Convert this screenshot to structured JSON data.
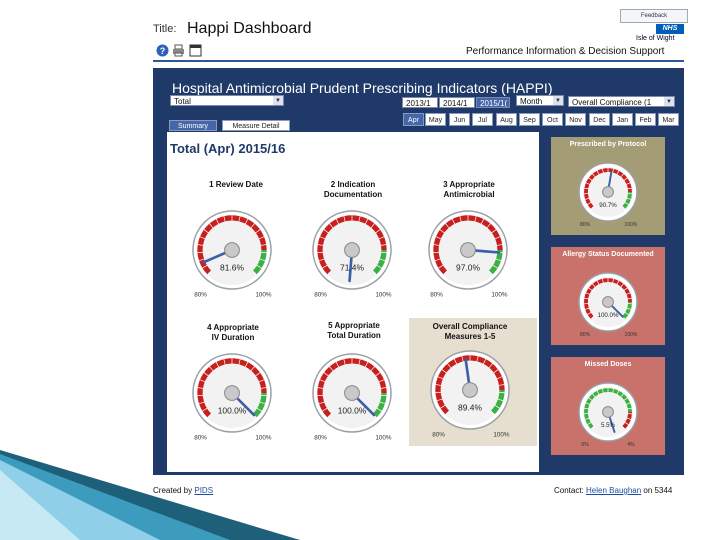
{
  "header": {
    "title_label": "Title:",
    "title_value": "Happi Dashboard",
    "feedback_label": "Feedback",
    "nhs_logo": "NHS",
    "trust_name": "Isle of Wight",
    "org_name": "Performance Information & Decision Support",
    "icons": [
      "help-icon",
      "print-icon",
      "window-icon"
    ]
  },
  "app": {
    "title": "Hospital Antimicrobial Prudent Prescribing Indicators  (HAPPI)",
    "ward_select": "Total",
    "years": [
      "2013/1",
      "2014/1",
      "2015/1("
    ],
    "period_select": "Month",
    "measure_select": "Overall Compliance (1",
    "view_tabs": [
      "Summary",
      "Measure Detail"
    ],
    "months": [
      "Apr",
      "May",
      "Jun",
      "Jul",
      "Aug",
      "Sep",
      "Oct",
      "Nov",
      "Dec",
      "Jan",
      "Feb",
      "Mar"
    ],
    "active_month": "Apr",
    "panel_heading": "Total (Apr) 2015/16"
  },
  "gauges": [
    {
      "label_line1": "1 Review Date",
      "label_line2": "",
      "value": 81.6,
      "display": "81.6%",
      "min_label": "80%",
      "max_label": "100%"
    },
    {
      "label_line1": "2 Indication",
      "label_line2": "Documentation",
      "value": 71.4,
      "display": "71.4%",
      "min_label": "80%",
      "max_label": "100%"
    },
    {
      "label_line1": "3 Appropriate",
      "label_line2": "Antimicrobial",
      "value": 97.0,
      "display": "97.0%",
      "min_label": "80%",
      "max_label": "100%"
    },
    {
      "label_line1": "4  Appropriate",
      "label_line2": "IV Duration",
      "value": 100.0,
      "display": "100.0%",
      "min_label": "80%",
      "max_label": "100%"
    },
    {
      "label_line1": "5  Appropriate",
      "label_line2": "Total Duration",
      "value": 100.0,
      "display": "100.0%",
      "min_label": "80%",
      "max_label": "100%"
    },
    {
      "label_line1": "Overall Compliance",
      "label_line2": "Measures 1-5",
      "value": 89.4,
      "display": "89.4%",
      "min_label": "80%",
      "max_label": "100%"
    }
  ],
  "side_gauges": [
    {
      "title": "Prescribed by Protocol",
      "value": 90.7,
      "display": "90.7%",
      "min_label": "80%",
      "max_label": "100%",
      "color": "#a49c75"
    },
    {
      "title": "Allergy Status Documented",
      "value": 100.0,
      "display": "100.0%",
      "min_label": "80%",
      "max_label": "100%",
      "color": "#c9716b"
    },
    {
      "title": "Missed Doses",
      "value": 5.5,
      "display": "5.5%",
      "min_label": "0%",
      "max_label": "4%",
      "color": "#c9716b"
    }
  ],
  "footer": {
    "created_by_label": "Created by",
    "created_by_link": "PIDS",
    "contact_label": "Contact:",
    "contact_link": "Helen Baughan",
    "contact_ext": "on 5344"
  },
  "colors": {
    "navy": "#1f3a69",
    "good": "#3cb043",
    "bad": "#c8201e",
    "overall_bg": "#e6dfcf"
  }
}
